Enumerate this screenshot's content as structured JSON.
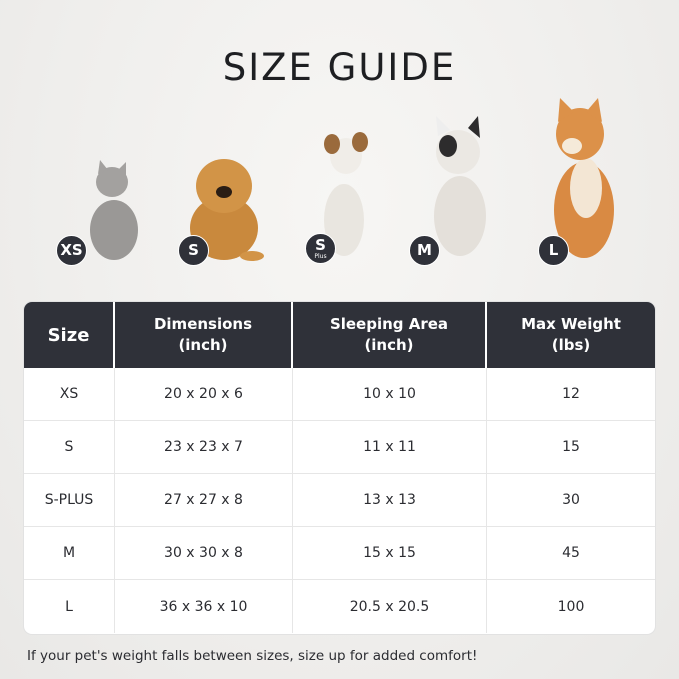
{
  "title": "SIZE GUIDE",
  "pets": [
    {
      "badge": "XS",
      "sub": "",
      "icon": "cat-image",
      "fur": "#9a9896"
    },
    {
      "badge": "S",
      "sub": "",
      "icon": "pomeranian-image",
      "fur": "#c9893d"
    },
    {
      "badge": "S",
      "sub": "Plus",
      "icon": "jack-russell-image",
      "fur": "#e9e6e0"
    },
    {
      "badge": "M",
      "sub": "",
      "icon": "french-bulldog-image",
      "fur": "#e4e0da"
    },
    {
      "badge": "L",
      "sub": "",
      "icon": "shiba-inu-image",
      "fur": "#d98a43"
    }
  ],
  "table": {
    "headers": [
      {
        "l1": "Size",
        "l2": ""
      },
      {
        "l1": "Dimensions",
        "l2": "(inch)"
      },
      {
        "l1": "Sleeping Area",
        "l2": "(inch)"
      },
      {
        "l1": "Max Weight",
        "l2": "(lbs)"
      }
    ],
    "rows": [
      [
        "XS",
        "20 x 20 x 6",
        "10 x 10",
        "12"
      ],
      [
        "S",
        "23 x 23 x 7",
        "11 x 11",
        "15"
      ],
      [
        "S-PLUS",
        "27 x 27 x 8",
        "13 x 13",
        "30"
      ],
      [
        "M",
        "30 x 30 x 8",
        "15 x 15",
        "45"
      ],
      [
        "L",
        "36 x 36 x 10",
        "20.5 x 20.5",
        "100"
      ]
    ],
    "header_color": "#2f3139"
  },
  "footnote": "If your pet's weight falls between sizes, size up for added comfort!"
}
